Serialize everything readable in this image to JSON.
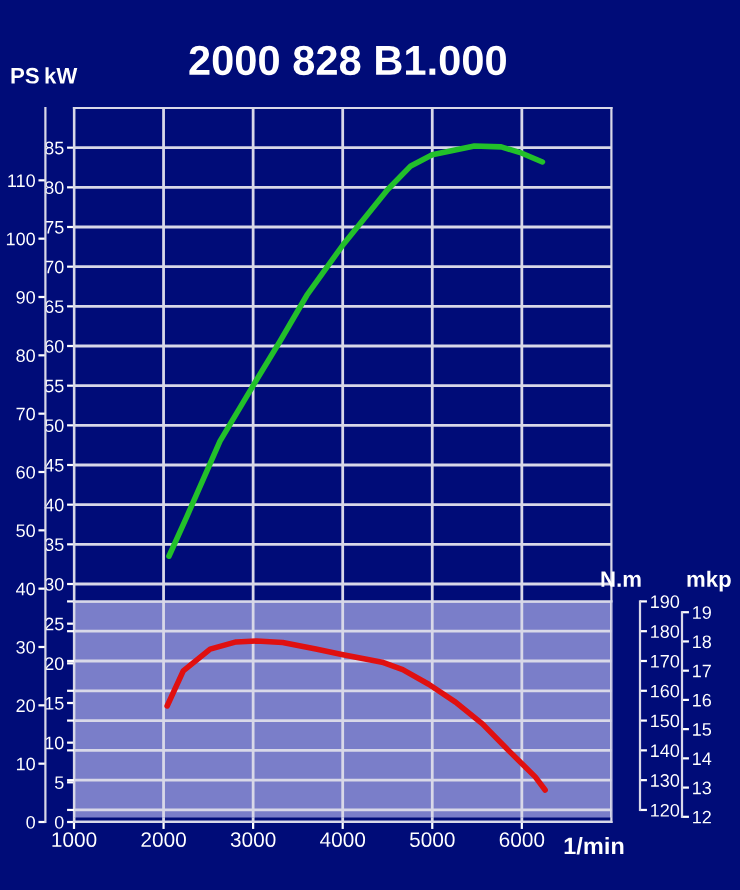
{
  "chart_data": [
    {
      "type": "line",
      "title": "2000 828 B1.000",
      "xlabel": "1/min",
      "ylabel": "kW",
      "y2label": "PS",
      "xlim": [
        1000,
        7000
      ],
      "xticks": [
        1000,
        2000,
        3000,
        4000,
        5000,
        6000
      ],
      "ylim": [
        0,
        90
      ],
      "yticks": [
        0,
        5,
        10,
        15,
        20,
        25,
        30,
        35,
        40,
        45,
        50,
        55,
        60,
        65,
        70,
        75,
        80,
        85
      ],
      "y2lim": [
        0,
        122.4
      ],
      "y2ticks": [
        0,
        10,
        20,
        30,
        40,
        50,
        60,
        70,
        80,
        90,
        100,
        110
      ],
      "grid": true,
      "series": [
        {
          "color": "#22c02a",
          "x": [
            2060,
            2260,
            2630,
            3000,
            3300,
            3600,
            4000,
            4500,
            4760,
            5000,
            5470,
            5770,
            6000,
            6230
          ],
          "values": [
            33.5,
            38.5,
            48,
            55,
            60.6,
            66.4,
            72.7,
            79.7,
            82.7,
            84.1,
            85.2,
            85.1,
            84.3,
            83.2
          ]
        }
      ]
    },
    {
      "type": "line",
      "ylabel": "N.m",
      "y2label": "mkp",
      "tick_labels": "y",
      "xlim": [
        1000,
        7000
      ],
      "ylim": [
        117.5,
        190
      ],
      "yticks": [
        120,
        130,
        140,
        150,
        160,
        170,
        180,
        190
      ],
      "y2lim": [
        11.98,
        19.37
      ],
      "y2ticks": [
        12,
        13,
        14,
        15,
        16,
        17,
        18,
        19
      ],
      "grid": true,
      "series": [
        {
          "color": "#e01010",
          "x": [
            2040,
            2220,
            2520,
            2810,
            3040,
            3330,
            3700,
            3990,
            4440,
            4670,
            4960,
            5260,
            5560,
            5850,
            6150,
            6260
          ],
          "values": [
            154.9,
            166.7,
            174,
            176.4,
            176.7,
            176.2,
            174,
            172.2,
            169.6,
            167.1,
            162.2,
            156.2,
            148.9,
            140,
            131.1,
            126.7
          ]
        }
      ]
    }
  ]
}
